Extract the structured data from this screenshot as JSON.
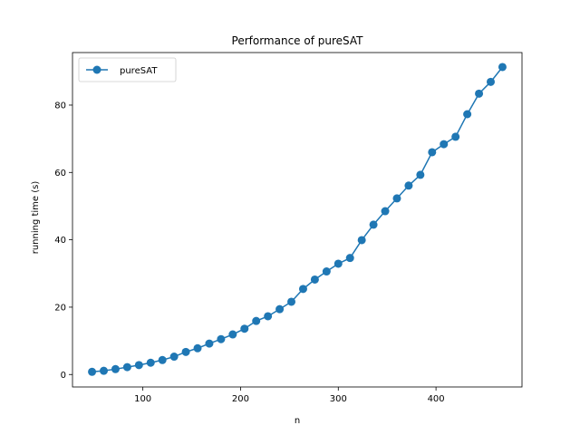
{
  "chart_data": {
    "type": "line",
    "title": "Performance of pureSAT",
    "xlabel": "n",
    "ylabel": "running time (s)",
    "xlim": [
      28,
      488
    ],
    "ylim": [
      -3.7,
      95.6
    ],
    "xticks": [
      100,
      200,
      300,
      400
    ],
    "yticks": [
      0,
      20,
      40,
      60,
      80
    ],
    "grid": false,
    "legend_position": "top-left",
    "series": [
      {
        "name": "pureSAT",
        "color": "#1f77b4",
        "marker": "circle",
        "x": [
          48,
          60,
          72,
          84,
          96,
          108,
          120,
          132,
          144,
          156,
          168,
          180,
          192,
          204,
          216,
          228,
          240,
          252,
          264,
          276,
          288,
          300,
          312,
          324,
          336,
          348,
          360,
          372,
          384,
          396,
          408,
          420,
          432,
          444,
          456,
          468
        ],
        "y": [
          0.8,
          1.1,
          1.6,
          2.2,
          2.8,
          3.5,
          4.3,
          5.3,
          6.7,
          7.8,
          9.2,
          10.5,
          11.9,
          13.6,
          15.9,
          17.3,
          19.4,
          21.6,
          25.4,
          28.2,
          30.6,
          32.9,
          34.6,
          39.9,
          44.5,
          48.5,
          52.3,
          56.1,
          59.3,
          66.0,
          68.4,
          70.6,
          77.3,
          83.4,
          86.9,
          91.3
        ]
      }
    ]
  }
}
